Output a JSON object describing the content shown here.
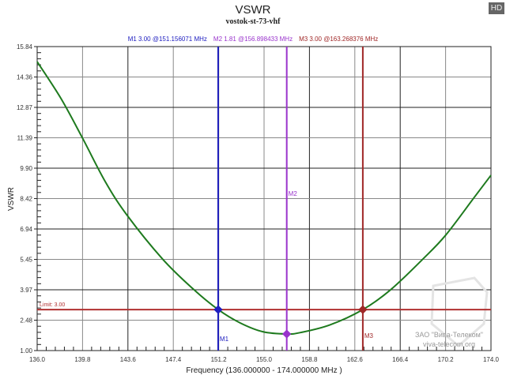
{
  "badge": "HD",
  "chart_data": {
    "type": "line",
    "title": "VSWR",
    "subtitle": "vostok-st-73-vhf",
    "xlabel": "Frequency (136.000000 - 174.000000 MHz )",
    "ylabel": "VSWR",
    "xlim": [
      136.0,
      174.0
    ],
    "ylim": [
      1.0,
      15.84
    ],
    "x_ticks": [
      "136.0",
      "139.8",
      "143.6",
      "147.4",
      "151.2",
      "155.0",
      "158.8",
      "162.6",
      "166.4",
      "170.2",
      "174.0"
    ],
    "y_ticks": [
      "1.00",
      "2.48",
      "3.97",
      "5.45",
      "6.94",
      "8.42",
      "9.90",
      "11.39",
      "12.87",
      "14.36",
      "15.84"
    ],
    "grid": true,
    "series": [
      {
        "color": "#1e7a1e",
        "x": [
          136.0,
          138.0,
          139.8,
          141.7,
          143.5,
          146.5,
          149.0,
          151.16,
          153.0,
          154.9,
          156.9,
          158.05,
          160.5,
          163.27,
          165.6,
          168.3,
          170.2,
          172.6,
          174.0
        ],
        "y": [
          15.1,
          13.3,
          11.37,
          9.25,
          7.63,
          5.47,
          4.04,
          3.0,
          2.35,
          1.92,
          1.81,
          1.88,
          2.25,
          3.0,
          3.97,
          5.47,
          6.63,
          8.48,
          9.56
        ]
      }
    ],
    "limit": {
      "label": "Limit: 3.00",
      "value": 3.0,
      "color": "#b03030"
    },
    "markers": [
      {
        "name": "M1",
        "freq": 151.156071,
        "value": 3.0,
        "readout": "M1  3.00 @151.156071 MHz",
        "color": "#2020c0"
      },
      {
        "name": "M2",
        "freq": 156.898433,
        "value": 1.81,
        "readout": "M2  1.81 @156.898433 MHz",
        "color": "#9933cc"
      },
      {
        "name": "M3",
        "freq": 163.268376,
        "value": 3.0,
        "readout": "M3  3.00 @163.268376 MHz",
        "color": "#a02828"
      }
    ]
  },
  "watermark": {
    "line1": "ЗАО \"Вива-Телеком\"",
    "line2": "viva-telecom.org"
  }
}
